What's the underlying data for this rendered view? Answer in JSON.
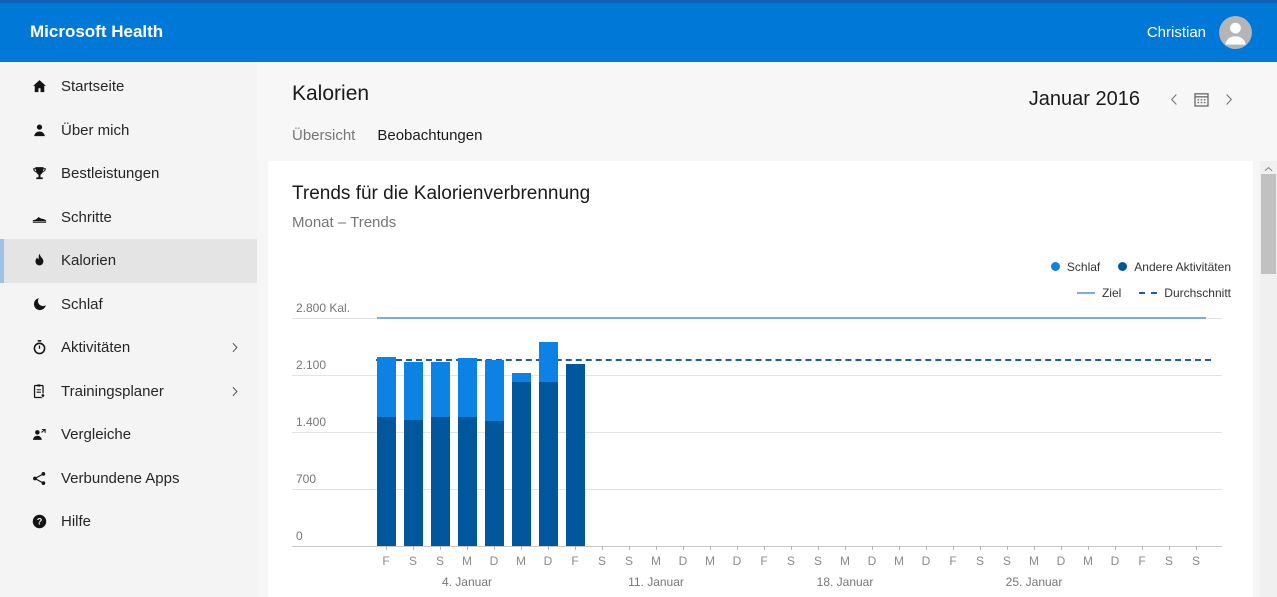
{
  "app": {
    "title": "Microsoft Health",
    "user": "Christian"
  },
  "colors": {
    "header": "#0078d7",
    "header_top_strip": "#0d62b5",
    "selected_accent": "#9dc3e6",
    "sidebar_bg": "#f4f4f4",
    "card_bg": "#ffffff"
  },
  "sidebar": {
    "items": [
      {
        "id": "startseite",
        "label": "Startseite",
        "icon": "home",
        "selected": false,
        "expandable": false
      },
      {
        "id": "ueber-mich",
        "label": "Über mich",
        "icon": "user",
        "selected": false,
        "expandable": false
      },
      {
        "id": "bestleistungen",
        "label": "Bestleistungen",
        "icon": "trophy",
        "selected": false,
        "expandable": false
      },
      {
        "id": "schritte",
        "label": "Schritte",
        "icon": "shoe",
        "selected": false,
        "expandable": false
      },
      {
        "id": "kalorien",
        "label": "Kalorien",
        "icon": "flame",
        "selected": true,
        "expandable": false
      },
      {
        "id": "schlaf",
        "label": "Schlaf",
        "icon": "moon",
        "selected": false,
        "expandable": false
      },
      {
        "id": "aktivitaeten",
        "label": "Aktivitäten",
        "icon": "stopwatch",
        "selected": false,
        "expandable": true
      },
      {
        "id": "trainingsplaner",
        "label": "Trainingsplaner",
        "icon": "clipboard",
        "selected": false,
        "expandable": true
      },
      {
        "id": "vergleiche",
        "label": "Vergleiche",
        "icon": "people",
        "selected": false,
        "expandable": false
      },
      {
        "id": "verbundene-apps",
        "label": "Verbundene Apps",
        "icon": "share",
        "selected": false,
        "expandable": false
      },
      {
        "id": "hilfe",
        "label": "Hilfe",
        "icon": "help",
        "selected": false,
        "expandable": false
      }
    ]
  },
  "header": {
    "title": "Kalorien",
    "tabs": [
      {
        "id": "uebersicht",
        "label": "Übersicht",
        "active": false
      },
      {
        "id": "beobachtungen",
        "label": "Beobachtungen",
        "active": true
      }
    ],
    "period": "Januar 2016"
  },
  "chart_data": {
    "type": "bar",
    "stacked": true,
    "title": "Trends für die Kalorienverbrennung",
    "subtitle": "Monat – Trends",
    "unit": "Kal.",
    "ylim": [
      0,
      2800
    ],
    "grid": true,
    "legend_position": "top-right",
    "y_ticks": [
      {
        "value": 0,
        "label": "0"
      },
      {
        "value": 700,
        "label": "700"
      },
      {
        "value": 1400,
        "label": "1.400"
      },
      {
        "value": 2100,
        "label": "2.100"
      },
      {
        "value": 2800,
        "label": "2.800 Kal."
      }
    ],
    "x_labels": [
      "F",
      "S",
      "S",
      "M",
      "D",
      "M",
      "D",
      "F",
      "S",
      "S",
      "M",
      "D",
      "M",
      "D",
      "F",
      "S",
      "S",
      "M",
      "D",
      "M",
      "D",
      "F",
      "S",
      "S",
      "M",
      "D",
      "M",
      "D",
      "F",
      "S",
      "S"
    ],
    "week_labels": [
      {
        "label": "4. Januar",
        "day_index": 3
      },
      {
        "label": "11. Januar",
        "day_index": 10
      },
      {
        "label": "18. Januar",
        "day_index": 17
      },
      {
        "label": "25. Januar",
        "day_index": 24
      }
    ],
    "series": [
      {
        "name": "Andere Aktivitäten",
        "color": "#01579b",
        "stack": "bottom",
        "values": [
          1580,
          1550,
          1590,
          1590,
          1530,
          2010,
          2010,
          2240
        ]
      },
      {
        "name": "Schlaf",
        "color": "#0c82e4",
        "stack": "top",
        "values": [
          740,
          710,
          670,
          720,
          750,
          110,
          500,
          0
        ]
      }
    ],
    "totals": [
      2320,
      2260,
      2260,
      2310,
      2280,
      2120,
      2510,
      2240
    ],
    "goal": {
      "label": "Ziel",
      "value": 2800,
      "color": "#7fabdc"
    },
    "average": {
      "label": "Durchschnitt",
      "value": 2280,
      "color": "#1f5e9e"
    },
    "legend": {
      "row1": [
        {
          "label": "Schlaf",
          "marker": "dot",
          "color": "#0c82e4"
        },
        {
          "label": "Andere Aktivitäten",
          "marker": "dot",
          "color": "#01579b"
        }
      ],
      "row2": [
        {
          "label": "Ziel",
          "marker": "line",
          "color": "#7fabdc"
        },
        {
          "label": "Durchschnitt",
          "marker": "dashed",
          "color": "#1f5e9e"
        }
      ]
    }
  }
}
